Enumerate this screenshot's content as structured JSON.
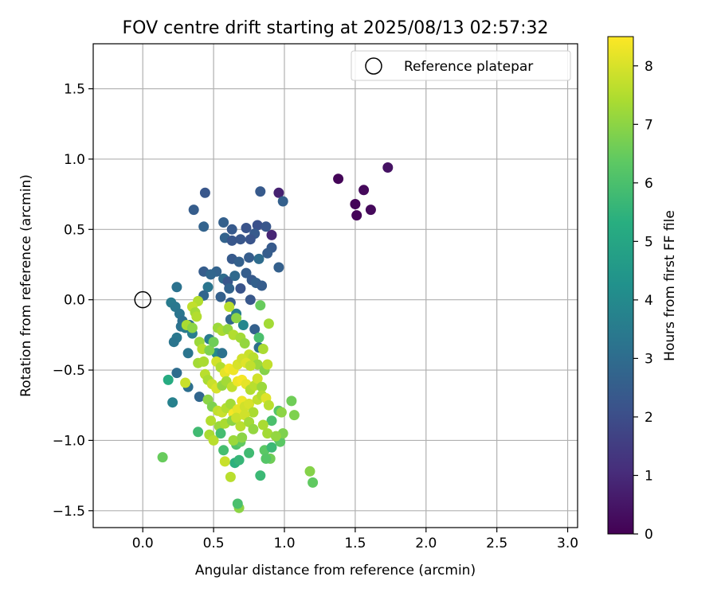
{
  "chart_data": {
    "type": "scatter",
    "title": "FOV centre drift starting at 2025/08/13 02:57:32",
    "xlabel": "Angular distance from reference (arcmin)",
    "ylabel": "Rotation from reference (arcmin)",
    "xlim": [
      -0.35,
      3.07
    ],
    "ylim": [
      -1.62,
      1.82
    ],
    "x_ticks": [
      0.0,
      0.5,
      1.0,
      1.5,
      2.0,
      2.5,
      3.0
    ],
    "y_ticks": [
      -1.5,
      -1.0,
      -0.5,
      0.0,
      0.5,
      1.0,
      1.5
    ],
    "x_tick_labels": [
      "0.0",
      "0.5",
      "1.0",
      "1.5",
      "2.0",
      "2.5",
      "3.0"
    ],
    "y_tick_labels": [
      "−1.5",
      "−1.0",
      "−0.5",
      "0.0",
      "0.5",
      "1.0",
      "1.5"
    ],
    "grid": true,
    "legend": {
      "placement": "top-right",
      "entries": [
        "Reference platepar"
      ]
    },
    "reference_point": {
      "name": "Reference platepar",
      "x": 0.0,
      "y": 0.0,
      "marker": "open-circle"
    },
    "colorbar": {
      "label": "Hours from first FF file",
      "colormap": "viridis",
      "range": [
        0,
        8.5
      ],
      "ticks": [
        0,
        1,
        2,
        3,
        4,
        5,
        6,
        7,
        8
      ],
      "tick_labels": [
        "0",
        "1",
        "2",
        "3",
        "4",
        "5",
        "6",
        "7",
        "8"
      ]
    },
    "points": [
      [
        1.38,
        0.86,
        0.1
      ],
      [
        1.5,
        0.68,
        0.1
      ],
      [
        1.51,
        0.6,
        0.1
      ],
      [
        1.56,
        0.78,
        0.2
      ],
      [
        1.61,
        0.64,
        0.2
      ],
      [
        1.73,
        0.94,
        0.4
      ],
      [
        0.96,
        0.76,
        0.8
      ],
      [
        0.91,
        0.46,
        0.9
      ],
      [
        0.44,
        0.76,
        2.3
      ],
      [
        0.36,
        0.64,
        2.5
      ],
      [
        0.57,
        0.55,
        2.6
      ],
      [
        0.43,
        0.52,
        2.7
      ],
      [
        0.63,
        0.5,
        2.4
      ],
      [
        0.58,
        0.44,
        2.7
      ],
      [
        0.63,
        0.42,
        2.3
      ],
      [
        0.83,
        0.77,
        2.4
      ],
      [
        0.99,
        0.7,
        2.6
      ],
      [
        0.73,
        0.51,
        2.2
      ],
      [
        0.81,
        0.53,
        2.1
      ],
      [
        0.87,
        0.52,
        2.3
      ],
      [
        0.79,
        0.47,
        2.4
      ],
      [
        0.76,
        0.43,
        2.2
      ],
      [
        0.69,
        0.43,
        2.3
      ],
      [
        0.91,
        0.37,
        2.4
      ],
      [
        0.88,
        0.33,
        2.5
      ],
      [
        0.96,
        0.23,
        2.6
      ],
      [
        0.75,
        0.3,
        2.5
      ],
      [
        0.63,
        0.29,
        2.4
      ],
      [
        0.82,
        0.29,
        3.0
      ],
      [
        0.68,
        0.27,
        2.6
      ],
      [
        0.43,
        0.2,
        2.5
      ],
      [
        0.52,
        0.2,
        2.7
      ],
      [
        0.48,
        0.18,
        2.8
      ],
      [
        0.57,
        0.15,
        3.0
      ],
      [
        0.6,
        0.13,
        2.3
      ],
      [
        0.65,
        0.17,
        2.9
      ],
      [
        0.73,
        0.19,
        2.5
      ],
      [
        0.77,
        0.14,
        2.4
      ],
      [
        0.8,
        0.12,
        2.6
      ],
      [
        0.84,
        0.1,
        2.5
      ],
      [
        0.61,
        0.08,
        2.7
      ],
      [
        0.69,
        0.08,
        2.2
      ],
      [
        0.46,
        0.09,
        3.3
      ],
      [
        0.24,
        0.09,
        3.2
      ],
      [
        0.55,
        0.02,
        2.6
      ],
      [
        0.76,
        0.0,
        2.3
      ],
      [
        0.62,
        -0.02,
        2.5
      ],
      [
        0.43,
        0.03,
        2.8
      ],
      [
        0.2,
        -0.02,
        3.5
      ],
      [
        0.23,
        -0.05,
        3.4
      ],
      [
        0.26,
        -0.1,
        3.3
      ],
      [
        0.28,
        -0.15,
        3.1
      ],
      [
        0.27,
        -0.19,
        3.2
      ],
      [
        0.3,
        -0.2,
        3.5
      ],
      [
        0.33,
        -0.18,
        3.0
      ],
      [
        0.35,
        -0.24,
        3.6
      ],
      [
        0.24,
        -0.27,
        3.4
      ],
      [
        0.22,
        -0.3,
        3.3
      ],
      [
        0.32,
        -0.38,
        3.3
      ],
      [
        0.62,
        -0.14,
        2.8
      ],
      [
        0.66,
        -0.1,
        3.6
      ],
      [
        0.79,
        -0.21,
        2.6
      ],
      [
        0.82,
        -0.27,
        6.0
      ],
      [
        0.82,
        -0.34,
        3.1
      ],
      [
        0.71,
        -0.18,
        3.9
      ],
      [
        0.24,
        -0.52,
        3.0
      ],
      [
        0.32,
        -0.62,
        3.1
      ],
      [
        0.21,
        -0.73,
        3.7
      ],
      [
        0.4,
        -0.69,
        2.8
      ],
      [
        0.47,
        -0.28,
        3.5
      ],
      [
        0.52,
        -0.38,
        4.0
      ],
      [
        0.56,
        -0.38,
        3.2
      ],
      [
        0.18,
        -0.57,
        5.2
      ],
      [
        0.14,
        -1.12,
        6.5
      ],
      [
        0.39,
        -0.94,
        5.8
      ],
      [
        0.62,
        -1.26,
        7.6
      ],
      [
        0.68,
        -1.48,
        7.0
      ],
      [
        0.67,
        -1.45,
        6.0
      ],
      [
        0.65,
        -1.16,
        5.4
      ],
      [
        0.68,
        -1.14,
        5.6
      ],
      [
        0.57,
        -1.07,
        5.9
      ],
      [
        0.58,
        -1.15,
        7.8
      ],
      [
        0.66,
        -1.03,
        6.1
      ],
      [
        0.69,
        -1.01,
        6.4
      ],
      [
        0.75,
        -1.09,
        5.8
      ],
      [
        0.86,
        -1.07,
        6.3
      ],
      [
        0.9,
        -1.13,
        6.6
      ],
      [
        0.87,
        -1.13,
        6.2
      ],
      [
        0.91,
        -1.05,
        5.7
      ],
      [
        0.96,
        -0.99,
        5.9
      ],
      [
        0.97,
        -1.01,
        6.3
      ],
      [
        0.99,
        -0.95,
        6.8
      ],
      [
        1.18,
        -1.22,
        6.9
      ],
      [
        1.2,
        -1.3,
        6.4
      ],
      [
        0.83,
        -1.25,
        5.7
      ],
      [
        0.91,
        -0.86,
        6.0
      ],
      [
        0.96,
        -0.79,
        6.2
      ],
      [
        1.05,
        -0.72,
        6.6
      ],
      [
        1.07,
        -0.82,
        6.8
      ],
      [
        0.98,
        -0.8,
        7.0
      ],
      [
        0.89,
        -0.17,
        7.3
      ],
      [
        0.83,
        -0.04,
        6.5
      ],
      [
        0.61,
        -0.05,
        7.6
      ],
      [
        0.39,
        -0.01,
        7.5
      ],
      [
        0.35,
        -0.05,
        7.7
      ],
      [
        0.37,
        -0.09,
        7.3
      ],
      [
        0.38,
        -0.12,
        7.5
      ],
      [
        0.31,
        -0.18,
        7.4
      ],
      [
        0.35,
        -0.2,
        7.0
      ],
      [
        0.4,
        -0.3,
        7.2
      ],
      [
        0.42,
        -0.35,
        7.6
      ],
      [
        0.39,
        -0.45,
        7.3
      ],
      [
        0.43,
        -0.44,
        7.4
      ],
      [
        0.47,
        -0.36,
        6.8
      ],
      [
        0.5,
        -0.3,
        6.6
      ],
      [
        0.53,
        -0.2,
        7.2
      ],
      [
        0.56,
        -0.22,
        7.4
      ],
      [
        0.6,
        -0.21,
        7.1
      ],
      [
        0.64,
        -0.25,
        7.5
      ],
      [
        0.66,
        -0.13,
        7.0
      ],
      [
        0.69,
        -0.27,
        7.3
      ],
      [
        0.72,
        -0.31,
        7.1
      ],
      [
        0.75,
        -0.39,
        7.8
      ],
      [
        0.78,
        -0.41,
        7.6
      ],
      [
        0.81,
        -0.46,
        7.2
      ],
      [
        0.85,
        -0.35,
        7.4
      ],
      [
        0.86,
        -0.5,
        6.9
      ],
      [
        0.88,
        -0.46,
        7.7
      ],
      [
        0.52,
        -0.44,
        7.9
      ],
      [
        0.55,
        -0.48,
        7.5
      ],
      [
        0.58,
        -0.52,
        8.2
      ],
      [
        0.61,
        -0.49,
        8.4
      ],
      [
        0.64,
        -0.5,
        8.3
      ],
      [
        0.67,
        -0.46,
        8.0
      ],
      [
        0.7,
        -0.42,
        7.9
      ],
      [
        0.73,
        -0.45,
        8.1
      ],
      [
        0.76,
        -0.47,
        7.7
      ],
      [
        0.44,
        -0.53,
        7.6
      ],
      [
        0.46,
        -0.57,
        7.4
      ],
      [
        0.49,
        -0.6,
        7.8
      ],
      [
        0.52,
        -0.63,
        8.0
      ],
      [
        0.56,
        -0.61,
        7.1
      ],
      [
        0.59,
        -0.58,
        7.3
      ],
      [
        0.63,
        -0.62,
        7.7
      ],
      [
        0.67,
        -0.58,
        8.3
      ],
      [
        0.7,
        -0.57,
        8.4
      ],
      [
        0.73,
        -0.6,
        8.2
      ],
      [
        0.76,
        -0.64,
        7.5
      ],
      [
        0.79,
        -0.61,
        7.6
      ],
      [
        0.81,
        -0.56,
        7.9
      ],
      [
        0.84,
        -0.62,
        7.2
      ],
      [
        0.3,
        -0.59,
        7.8
      ],
      [
        0.46,
        -0.71,
        7.0
      ],
      [
        0.49,
        -0.76,
        6.8
      ],
      [
        0.53,
        -0.79,
        7.7
      ],
      [
        0.56,
        -0.8,
        7.8
      ],
      [
        0.59,
        -0.77,
        7.5
      ],
      [
        0.62,
        -0.74,
        7.3
      ],
      [
        0.64,
        -0.81,
        8.4
      ],
      [
        0.67,
        -0.78,
        8.2
      ],
      [
        0.7,
        -0.72,
        8.3
      ],
      [
        0.72,
        -0.76,
        7.9
      ],
      [
        0.75,
        -0.74,
        8.0
      ],
      [
        0.78,
        -0.8,
        7.4
      ],
      [
        0.81,
        -0.71,
        7.7
      ],
      [
        0.84,
        -0.68,
        7.5
      ],
      [
        0.87,
        -0.7,
        8.1
      ],
      [
        0.89,
        -0.75,
        7.6
      ],
      [
        0.48,
        -0.86,
        7.5
      ],
      [
        0.54,
        -0.9,
        7.2
      ],
      [
        0.58,
        -0.88,
        7.4
      ],
      [
        0.63,
        -0.86,
        7.0
      ],
      [
        0.66,
        -0.84,
        7.8
      ],
      [
        0.69,
        -0.9,
        7.6
      ],
      [
        0.72,
        -0.82,
        7.9
      ],
      [
        0.75,
        -0.87,
        7.3
      ],
      [
        0.78,
        -0.92,
        7.1
      ],
      [
        0.85,
        -0.89,
        7.4
      ],
      [
        0.88,
        -0.95,
        7.3
      ],
      [
        0.94,
        -0.97,
        7.1
      ],
      [
        0.47,
        -0.96,
        7.4
      ],
      [
        0.5,
        -1.0,
        7.6
      ],
      [
        0.64,
        -1.0,
        7.2
      ],
      [
        0.7,
        -0.98,
        7.0
      ],
      [
        0.55,
        -0.95,
        5.9
      ]
    ]
  }
}
